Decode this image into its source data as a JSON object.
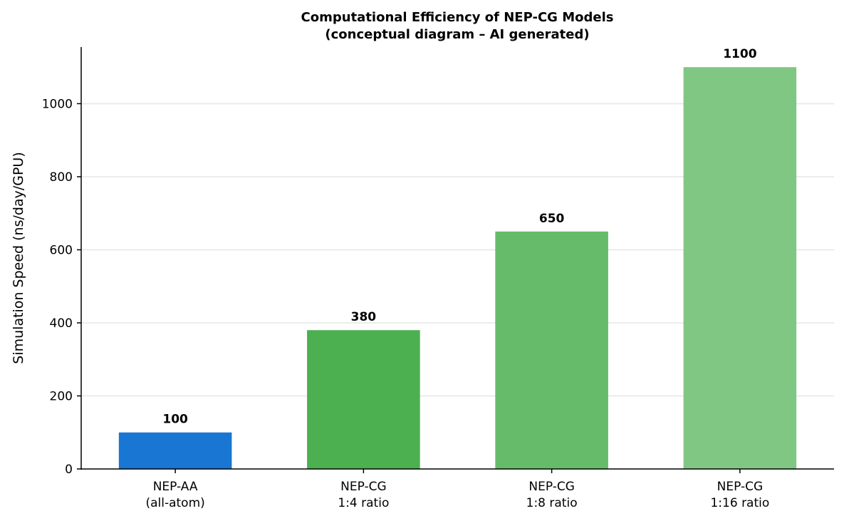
{
  "chart_data": {
    "type": "bar",
    "title": "Computational Efficiency of NEP-CG Models",
    "subtitle": "(conceptual diagram – AI generated)",
    "xlabel": "",
    "ylabel": "Simulation Speed (ns/day/GPU)",
    "ylim": [
      0,
      1155
    ],
    "yticks": [
      0,
      200,
      400,
      600,
      800,
      1000
    ],
    "grid": "horizontal",
    "categories": [
      {
        "line1": "NEP-AA",
        "line2": "(all-atom)"
      },
      {
        "line1": "NEP-CG",
        "line2": "1:4 ratio"
      },
      {
        "line1": "NEP-CG",
        "line2": "1:8 ratio"
      },
      {
        "line1": "NEP-CG",
        "line2": "1:16 ratio"
      }
    ],
    "values": [
      100,
      380,
      650,
      1100
    ],
    "data_labels": [
      "100",
      "380",
      "650",
      "1100"
    ],
    "colors": [
      "#1976d2",
      "#4caf50",
      "#66bb6a",
      "#81c784"
    ]
  }
}
